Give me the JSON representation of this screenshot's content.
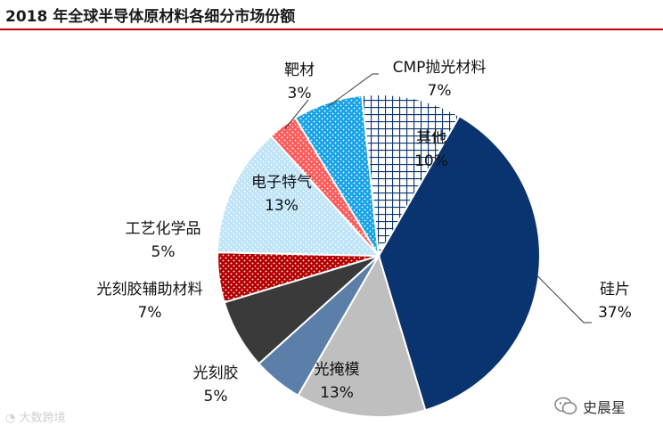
{
  "chart_data": {
    "type": "pie",
    "title": "2018 年全球半导体原材料各细分市场份额",
    "start_angle_deg": 30,
    "slices": [
      {
        "name": "硅片",
        "value": 37,
        "label": "37%",
        "color": "#0a3470",
        "pattern": "solid"
      },
      {
        "name": "光掩模",
        "value": 13,
        "label": "13%",
        "color": "#bfbfbf",
        "pattern": "solid"
      },
      {
        "name": "光刻胶",
        "value": 5,
        "label": "5%",
        "color": "#5b7fa8",
        "pattern": "solid"
      },
      {
        "name": "光刻胶辅助材料",
        "value": 7,
        "label": "7%",
        "color": "#3a3a3a",
        "pattern": "solid"
      },
      {
        "name": "工艺化学品",
        "value": 5,
        "label": "5%",
        "color": "#b40000",
        "pattern": "dots-white"
      },
      {
        "name": "电子特气",
        "value": 13,
        "label": "13%",
        "color": "#bfe4f7",
        "pattern": "dots-white"
      },
      {
        "name": "靶材",
        "value": 3,
        "label": "3%",
        "color": "#ff5a5a",
        "pattern": "dots-white"
      },
      {
        "name": "CMP抛光材料",
        "value": 7,
        "label": "7%",
        "color": "#19a3e6",
        "pattern": "dots-white"
      },
      {
        "name": "其他",
        "value": 10,
        "label": "10%",
        "color": "#0a3470",
        "pattern": "grid"
      }
    ]
  },
  "watermark": "大数跨境",
  "source": "史晨星",
  "colors": {
    "title_rule": "#c00000"
  }
}
